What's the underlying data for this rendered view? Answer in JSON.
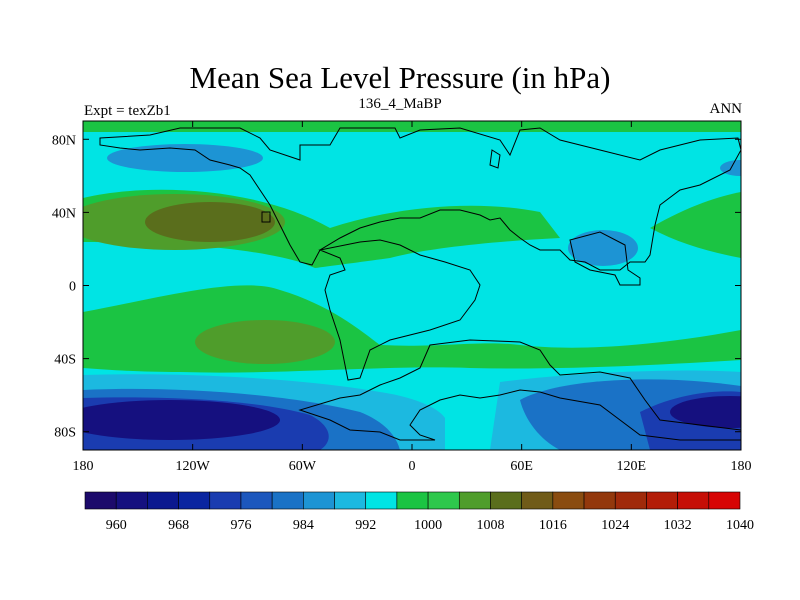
{
  "chart_data": {
    "type": "heatmap",
    "title": "Mean Sea Level Pressure (in hPa)",
    "subtitle": "136_4_MaBP",
    "left_label": "Expt = texZb1",
    "right_label": "ANN",
    "x_ticks": [
      {
        "lon": -180,
        "label": "180"
      },
      {
        "lon": -120,
        "label": "120W"
      },
      {
        "lon": -60,
        "label": "60W"
      },
      {
        "lon": 0,
        "label": "0"
      },
      {
        "lon": 60,
        "label": "60E"
      },
      {
        "lon": 120,
        "label": "120E"
      },
      {
        "lon": 180,
        "label": "180"
      }
    ],
    "y_ticks": [
      {
        "lat": 80,
        "label": "80N"
      },
      {
        "lat": 40,
        "label": "40N"
      },
      {
        "lat": 0,
        "label": "0"
      },
      {
        "lat": -40,
        "label": "40S"
      },
      {
        "lat": -80,
        "label": "80S"
      }
    ],
    "lon_range": [
      -180,
      180
    ],
    "lat_range": [
      -90,
      90
    ],
    "colorbar": {
      "levels": [
        960,
        964,
        968,
        972,
        976,
        980,
        984,
        988,
        992,
        996,
        1000,
        1004,
        1008,
        1012,
        1016,
        1020,
        1024,
        1028,
        1032,
        1036,
        1040
      ],
      "labels": [
        "960",
        "968",
        "976",
        "984",
        "992",
        "1000",
        "1008",
        "1016",
        "1024",
        "1032",
        "1040"
      ],
      "colors": [
        "#1c0a6b",
        "#15107f",
        "#0b188f",
        "#0a25a0",
        "#1a3cb0",
        "#1c57bd",
        "#1a72c6",
        "#1d94d4",
        "#1cb9e0",
        "#00e4e4",
        "#1bc443",
        "#2ec84c",
        "#4f9d2b",
        "#5a6e1c",
        "#705b18",
        "#8a4c10",
        "#93380c",
        "#a02a0a",
        "#b31d08",
        "#c60e06",
        "#d70404"
      ]
    }
  }
}
